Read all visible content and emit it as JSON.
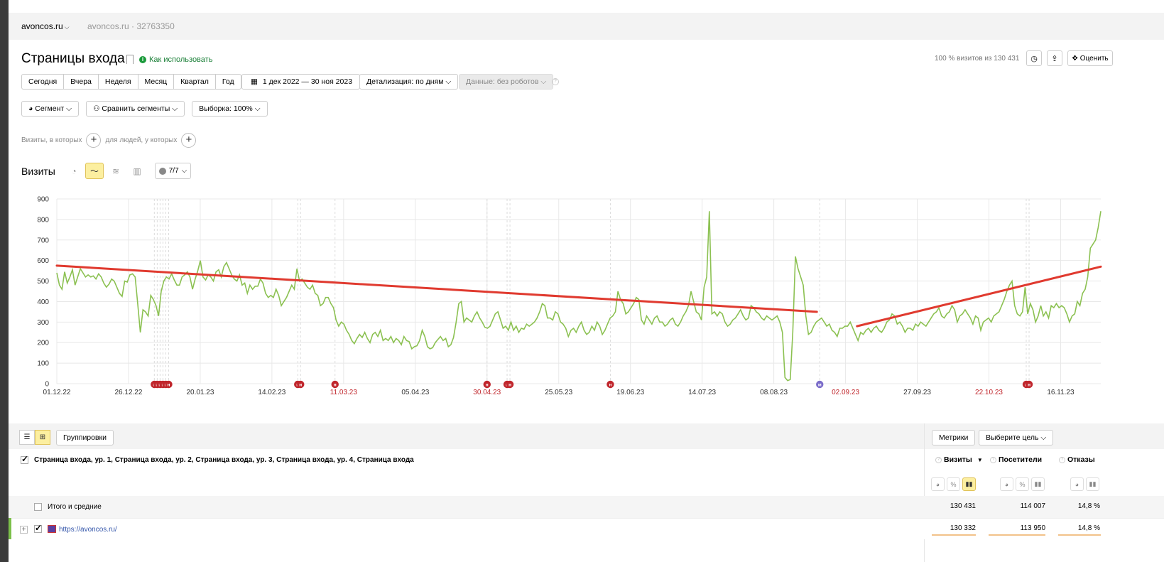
{
  "topbar": {
    "site": "avoncos.ru",
    "counter": "avoncos.ru · 32763350"
  },
  "header": {
    "title": "Страницы входа",
    "howto": "Как использовать",
    "visits_share": "100 % визитов из 130 431",
    "rate_label": "Оценить"
  },
  "periods": [
    "Сегодня",
    "Вчера",
    "Неделя",
    "Месяц",
    "Квартал",
    "Год"
  ],
  "date_range": "1 дек 2022 — 30 ноя 2023",
  "detail": "Детализация: по дням",
  "data_mode": "Данные: без роботов",
  "segment": {
    "segment": "Сегмент",
    "compare": "Сравнить сегменты",
    "sample": "Выборка: 100%"
  },
  "conditions": {
    "visits": "Визиты, в которых",
    "people": "для людей, у которых"
  },
  "chart_header": {
    "title": "Визиты",
    "notes": "7/7"
  },
  "chart_data": {
    "type": "line",
    "series": [
      {
        "values": [
          540,
          480,
          460,
          545,
          490,
          520,
          555,
          480,
          520,
          560,
          540,
          520,
          530,
          520,
          525,
          510,
          535,
          520,
          490,
          470,
          485,
          510,
          500,
          470,
          440,
          425,
          500,
          495,
          530,
          535,
          520,
          390,
          250,
          360,
          350,
          330,
          430,
          410,
          380,
          330,
          450,
          500,
          520,
          510,
          535,
          505,
          480,
          480,
          520,
          530,
          545,
          520,
          460,
          510,
          550,
          600,
          520,
          505,
          530,
          520,
          500,
          545,
          555,
          520,
          570,
          590,
          560,
          530,
          510,
          500,
          530,
          480,
          490,
          440,
          480,
          460,
          475,
          475,
          510,
          490,
          440,
          420,
          430,
          420,
          460,
          430,
          380,
          400,
          420,
          450,
          480,
          460,
          560,
          500,
          510,
          490,
          470,
          460,
          480,
          440,
          430,
          380,
          390,
          420,
          420,
          390,
          370,
          310,
          280,
          300,
          290,
          260,
          240,
          210,
          195,
          220,
          240,
          225,
          250,
          220,
          200,
          240,
          250,
          230,
          260,
          210,
          220,
          210,
          230,
          200,
          220,
          210,
          190,
          230,
          210,
          205,
          170,
          180,
          185,
          210,
          260,
          230,
          180,
          170,
          175,
          200,
          215,
          230,
          210,
          220,
          180,
          190,
          225,
          300,
          390,
          400,
          300,
          320,
          310,
          300,
          330,
          350,
          320,
          300,
          275,
          270,
          280,
          310,
          340,
          350,
          310,
          270,
          280,
          260,
          300,
          260,
          280,
          250,
          270,
          265,
          290,
          280,
          290,
          300,
          320,
          350,
          390,
          380,
          320,
          320,
          310,
          350,
          340,
          300,
          290,
          270,
          230,
          260,
          270,
          250,
          280,
          300,
          260,
          240,
          250,
          280,
          260,
          300,
          280,
          240,
          260,
          290,
          320,
          330,
          350,
          450,
          410,
          390,
          340,
          350,
          370,
          390,
          420,
          410,
          310,
          290,
          330,
          310,
          290,
          320,
          330,
          300,
          300,
          280,
          290,
          310,
          320,
          290,
          280,
          300,
          330,
          350,
          380,
          450,
          400,
          350,
          340,
          310,
          470,
          520,
          840,
          340,
          350,
          330,
          350,
          340,
          300,
          280,
          290,
          310,
          320,
          340,
          360,
          330,
          310,
          320,
          380,
          370,
          350,
          340,
          320,
          310,
          330,
          320,
          310,
          320,
          330,
          300,
          250,
          30,
          15,
          20,
          250,
          620,
          560,
          520,
          480,
          330,
          240,
          250,
          280,
          300,
          310,
          320,
          300,
          280,
          290,
          260,
          250,
          230,
          270,
          270,
          280,
          280,
          300,
          270,
          240,
          210,
          250,
          240,
          260,
          270,
          250,
          270,
          280,
          260,
          250,
          270,
          300,
          310,
          340,
          330,
          290,
          300,
          280,
          250,
          270,
          270,
          260,
          290,
          280,
          300,
          290,
          280,
          300,
          320,
          340,
          350,
          370,
          330,
          320,
          340,
          350,
          380,
          360,
          300,
          330,
          340,
          360,
          340,
          320,
          290,
          330,
          320,
          260,
          300,
          310,
          320,
          300,
          330,
          340,
          350,
          380,
          410,
          450,
          480,
          500,
          380,
          340,
          330,
          350,
          470,
          340,
          390,
          360,
          300,
          330,
          380,
          330,
          350,
          320,
          380,
          370,
          390,
          370,
          380,
          370,
          340,
          300,
          330,
          340,
          400,
          380,
          440,
          460,
          520,
          660,
          680,
          700,
          760,
          840
        ]
      }
    ],
    "x_tick_labels": [
      "01.12.22",
      "26.12.22",
      "20.01.23",
      "14.02.23",
      "11.03.23",
      "05.04.23",
      "30.04.23",
      "25.05.23",
      "19.06.23",
      "14.07.23",
      "08.08.23",
      "02.09.23",
      "27.09.23",
      "22.10.23",
      "16.11.23"
    ],
    "red_tick_labels": [
      "11.03.23",
      "30.04.23",
      "02.09.23",
      "22.10.23"
    ],
    "y_ticks": [
      0,
      100,
      200,
      300,
      400,
      500,
      600,
      700,
      800,
      900
    ],
    "ylim": [
      0,
      900
    ],
    "series_color": "#8cc152",
    "annotation_color": "#e03a2f",
    "trend_lines": [
      {
        "from": [
          "01.12.22",
          575
        ],
        "to": [
          "23.08.23",
          350
        ]
      },
      {
        "from": [
          "06.09.23",
          280
        ],
        "to": [
          "30.11.23",
          570
        ]
      }
    ],
    "notes": [
      {
        "date": "04.01.23",
        "label": "н"
      },
      {
        "date": "05.01.23",
        "label": "н"
      },
      {
        "date": "06.01.23",
        "label": "н"
      },
      {
        "date": "07.01.23",
        "label": "н"
      },
      {
        "date": "08.01.23",
        "label": "н"
      },
      {
        "date": "09.01.23",
        "label": "н"
      },
      {
        "date": "23.02.23",
        "label": "н"
      },
      {
        "date": "24.02.23",
        "label": "н"
      },
      {
        "date": "08.03.23",
        "label": "н"
      },
      {
        "date": "30.04.23",
        "label": "н"
      },
      {
        "date": "07.05.23",
        "label": "н"
      },
      {
        "date": "08.05.23",
        "label": "н"
      },
      {
        "date": "12.06.23",
        "label": "н"
      },
      {
        "date": "24.08.23",
        "label": "м"
      },
      {
        "date": "04.11.23",
        "label": "н"
      },
      {
        "date": "05.11.23",
        "label": "н"
      }
    ]
  },
  "table": {
    "view_toggle": [
      "list-icon",
      "tree-icon"
    ],
    "groupings": "Группировки",
    "metrics": "Метрики",
    "goal": "Выберите цель",
    "dimensions": "Страница входа, ур. 1, Страница входа, ур. 2, Страница входа, ур. 3, Страница входа, ур. 4, Страница входа",
    "columns": [
      {
        "label": "Визиты",
        "sort": "▼"
      },
      {
        "label": "Посетители",
        "sort": ""
      },
      {
        "label": "Отказы",
        "sort": ""
      }
    ],
    "mini_buttons": [
      "◕",
      "%",
      "▮▮"
    ],
    "totals": {
      "label": "Итого и средние",
      "values": [
        "130 431",
        "114 007",
        "14,8 %"
      ]
    },
    "rows": [
      {
        "label": "https://avoncos.ru/",
        "values": [
          "130 332",
          "113 950",
          "14,8 %"
        ]
      }
    ]
  }
}
